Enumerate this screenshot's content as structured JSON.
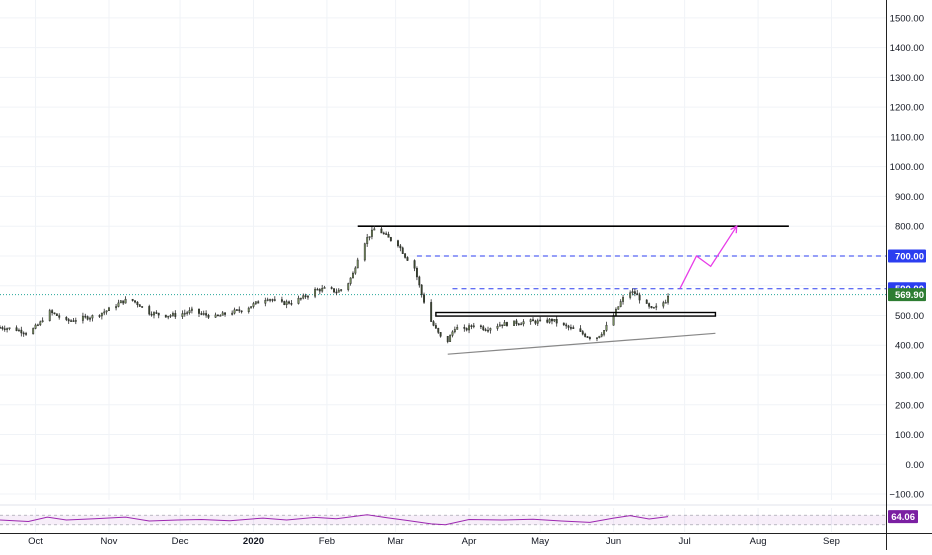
{
  "chart_data": {
    "type": "candlestick",
    "title": "",
    "xlabel": "",
    "ylabel": "",
    "ylim": [
      -120,
      1560
    ],
    "y_ticks": [
      -100,
      0,
      100,
      200,
      300,
      400,
      500,
      600,
      700,
      800,
      900,
      1000,
      1100,
      1200,
      1300,
      1400,
      1500
    ],
    "y_tick_labels": [
      "−100.00",
      "0.00",
      "100.00",
      "200.00",
      "300.00",
      "400.00",
      "500.00",
      "600.00",
      "700.00",
      "800.00",
      "900.00",
      "1000.00",
      "1100.00",
      "1200.00",
      "1300.00",
      "1400.00",
      "1500.00"
    ],
    "x_range": [
      "2019-09-16",
      "2020-09-24"
    ],
    "x_ticks": [
      {
        "date": "2019-10-01",
        "label": "Oct",
        "bold": false
      },
      {
        "date": "2019-11-01",
        "label": "Nov",
        "bold": false
      },
      {
        "date": "2019-12-01",
        "label": "Dec",
        "bold": false
      },
      {
        "date": "2020-01-01",
        "label": "2020",
        "bold": true
      },
      {
        "date": "2020-02-01",
        "label": "Feb",
        "bold": false
      },
      {
        "date": "2020-03-01",
        "label": "Mar",
        "bold": false
      },
      {
        "date": "2020-04-01",
        "label": "Apr",
        "bold": false
      },
      {
        "date": "2020-05-01",
        "label": "May",
        "bold": false
      },
      {
        "date": "2020-06-01",
        "label": "Jun",
        "bold": false
      },
      {
        "date": "2020-07-01",
        "label": "Jul",
        "bold": false
      },
      {
        "date": "2020-08-01",
        "label": "Aug",
        "bold": false
      },
      {
        "date": "2020-09-01",
        "label": "Sep",
        "bold": false
      }
    ],
    "grid": true,
    "colors": {
      "up": "#26a69a",
      "down": "#ef5350",
      "candle_body": "#5b6b4a",
      "candle_wick": "#2a2a2a"
    },
    "price_path": [
      [
        "2019-09-16",
        460
      ],
      [
        "2019-09-22",
        455
      ],
      [
        "2019-09-28",
        440
      ],
      [
        "2019-10-03",
        475
      ],
      [
        "2019-10-06",
        515
      ],
      [
        "2019-10-10",
        500
      ],
      [
        "2019-10-14",
        480
      ],
      [
        "2019-10-20",
        490
      ],
      [
        "2019-10-26",
        498
      ],
      [
        "2019-11-01",
        520
      ],
      [
        "2019-11-06",
        545
      ],
      [
        "2019-11-10",
        555
      ],
      [
        "2019-11-14",
        535
      ],
      [
        "2019-11-18",
        510
      ],
      [
        "2019-11-24",
        500
      ],
      [
        "2019-11-30",
        502
      ],
      [
        "2019-12-06",
        515
      ],
      [
        "2019-12-10",
        505
      ],
      [
        "2019-12-16",
        495
      ],
      [
        "2019-12-22",
        510
      ],
      [
        "2019-12-28",
        520
      ],
      [
        "2020-01-03",
        545
      ],
      [
        "2020-01-07",
        560
      ],
      [
        "2020-01-12",
        540
      ],
      [
        "2020-01-17",
        545
      ],
      [
        "2020-01-22",
        560
      ],
      [
        "2020-01-27",
        585
      ],
      [
        "2020-02-01",
        590
      ],
      [
        "2020-02-05",
        580
      ],
      [
        "2020-02-09",
        595
      ],
      [
        "2020-02-12",
        640
      ],
      [
        "2020-02-15",
        720
      ],
      [
        "2020-02-18",
        760
      ],
      [
        "2020-02-21",
        790
      ],
      [
        "2020-02-24",
        780
      ],
      [
        "2020-02-27",
        760
      ],
      [
        "2020-03-02",
        740
      ],
      [
        "2020-03-05",
        700
      ],
      [
        "2020-03-09",
        660
      ],
      [
        "2020-03-12",
        570
      ],
      [
        "2020-03-16",
        480
      ],
      [
        "2020-03-19",
        440
      ],
      [
        "2020-03-22",
        400
      ],
      [
        "2020-03-26",
        460
      ],
      [
        "2020-03-30",
        450
      ],
      [
        "2020-04-03",
        470
      ],
      [
        "2020-04-08",
        455
      ],
      [
        "2020-04-14",
        470
      ],
      [
        "2020-04-20",
        475
      ],
      [
        "2020-04-26",
        480
      ],
      [
        "2020-05-02",
        478
      ],
      [
        "2020-05-06",
        485
      ],
      [
        "2020-05-11",
        465
      ],
      [
        "2020-05-16",
        450
      ],
      [
        "2020-05-21",
        430
      ],
      [
        "2020-05-24",
        420
      ],
      [
        "2020-05-28",
        450
      ],
      [
        "2020-06-01",
        500
      ],
      [
        "2020-06-04",
        545
      ],
      [
        "2020-06-07",
        580
      ],
      [
        "2020-06-10",
        575
      ],
      [
        "2020-06-14",
        540
      ],
      [
        "2020-06-17",
        520
      ],
      [
        "2020-06-20",
        530
      ],
      [
        "2020-06-23",
        550
      ],
      [
        "2020-06-24",
        570
      ]
    ],
    "horizontal_lines": [
      {
        "value": 800,
        "style": "solid",
        "color": "#000000",
        "from": "2020-02-14",
        "to": "2020-08-14"
      },
      {
        "value": 700,
        "style": "dashed",
        "color": "#2b3ef0",
        "from": "2020-03-10",
        "to": "2020-09-24"
      },
      {
        "value": 590,
        "style": "dashed",
        "color": "#2b3ef0",
        "from": "2020-03-25",
        "to": "2020-09-24"
      },
      {
        "value": 569.9,
        "style": "dotted",
        "color": "#26a69a",
        "from": "2019-09-16",
        "to": "2020-09-24"
      }
    ],
    "support_zone": {
      "from": "2020-03-18",
      "to": "2020-07-14",
      "low": 498,
      "high": 510
    },
    "trendline": {
      "start": [
        "2020-03-23",
        370
      ],
      "end": [
        "2020-07-14",
        440
      ],
      "color": "#888888"
    },
    "projection": {
      "color": "#e83ce8",
      "points": [
        [
          "2020-06-29",
          590
        ],
        [
          "2020-07-06",
          700
        ],
        [
          "2020-07-12",
          665
        ],
        [
          "2020-07-23",
          800
        ]
      ]
    },
    "price_labels": [
      {
        "value": 700,
        "text": "700.00",
        "bg": "#2b3ef0",
        "fg": "#ffffff"
      },
      {
        "value": 590,
        "text": "590.00",
        "bg": "#2b3ef0",
        "fg": "#ffffff"
      },
      {
        "value": 569.9,
        "text": "569.90",
        "bg": "#2e7d32",
        "fg": "#ffffff"
      }
    ],
    "rsi": {
      "label": "64.06",
      "value": 64.06,
      "color": "#9c27b0",
      "label_bg": "#7b1fa2",
      "band": [
        30,
        70
      ],
      "path": [
        [
          "2019-09-16",
          50
        ],
        [
          "2019-09-28",
          44
        ],
        [
          "2019-10-06",
          62
        ],
        [
          "2019-10-14",
          50
        ],
        [
          "2019-10-26",
          55
        ],
        [
          "2019-11-08",
          62
        ],
        [
          "2019-11-18",
          46
        ],
        [
          "2019-11-30",
          50
        ],
        [
          "2019-12-10",
          52
        ],
        [
          "2019-12-22",
          47
        ],
        [
          "2020-01-05",
          58
        ],
        [
          "2020-01-15",
          50
        ],
        [
          "2020-01-27",
          61
        ],
        [
          "2020-02-05",
          55
        ],
        [
          "2020-02-18",
          72
        ],
        [
          "2020-02-26",
          60
        ],
        [
          "2020-03-06",
          48
        ],
        [
          "2020-03-16",
          34
        ],
        [
          "2020-03-22",
          30
        ],
        [
          "2020-04-01",
          52
        ],
        [
          "2020-04-15",
          50
        ],
        [
          "2020-04-28",
          53
        ],
        [
          "2020-05-10",
          46
        ],
        [
          "2020-05-22",
          40
        ],
        [
          "2020-06-01",
          58
        ],
        [
          "2020-06-08",
          68
        ],
        [
          "2020-06-16",
          54
        ],
        [
          "2020-06-24",
          64.06
        ]
      ]
    }
  }
}
